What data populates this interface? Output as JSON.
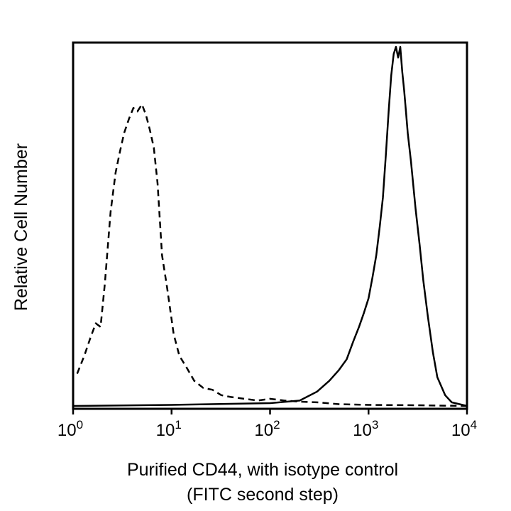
{
  "chart_data": {
    "type": "line",
    "title": "",
    "xlabel": [
      "Purified CD44, with isotype control",
      "(FITC second step)"
    ],
    "ylabel": "Relative Cell Number",
    "x_scale": "log10",
    "xlim": [
      1,
      10000
    ],
    "ylim": [
      0,
      100
    ],
    "grid": false,
    "x_ticks": [
      {
        "base": "10",
        "exp": "0",
        "value": 1
      },
      {
        "base": "10",
        "exp": "1",
        "value": 10
      },
      {
        "base": "10",
        "exp": "2",
        "value": 100
      },
      {
        "base": "10",
        "exp": "3",
        "value": 1000
      },
      {
        "base": "10",
        "exp": "4",
        "value": 10000
      }
    ],
    "series": [
      {
        "name": "isotype control",
        "style": "dashed",
        "color": "#000000",
        "x": [
          1.1,
          1.3,
          1.5,
          1.7,
          1.9,
          2.1,
          2.4,
          2.7,
          3.0,
          3.3,
          3.7,
          4.1,
          4.5,
          5.0,
          5.5,
          6.0,
          6.6,
          7.2,
          8.0,
          9.0,
          10.5,
          12,
          14,
          17,
          21,
          26,
          32,
          40,
          55,
          75,
          100,
          140,
          200,
          300,
          500,
          1000,
          3000,
          10000
        ],
        "y": [
          9,
          14,
          19,
          23,
          22,
          34,
          54,
          65,
          71,
          76,
          80,
          83,
          82,
          84,
          81,
          77,
          72,
          62,
          42,
          33,
          20,
          14,
          11,
          7,
          5,
          4.5,
          3,
          2.5,
          2,
          1.5,
          2,
          1.5,
          1.2,
          1,
          0.5,
          0.3,
          0.2,
          0
        ]
      },
      {
        "name": "Purified CD44",
        "style": "solid",
        "color": "#000000",
        "x": [
          1,
          10,
          100,
          200,
          300,
          400,
          500,
          600,
          700,
          800,
          900,
          1000,
          1100,
          1200,
          1300,
          1400,
          1500,
          1600,
          1700,
          1800,
          1900,
          2000,
          2100,
          2200,
          2300,
          2400,
          2500,
          2700,
          3000,
          3300,
          3600,
          4000,
          4500,
          5000,
          6000,
          7000,
          10000
        ],
        "y": [
          0,
          0.3,
          0.8,
          1.5,
          4,
          7,
          10,
          13,
          18,
          22,
          26,
          30,
          36,
          42,
          50,
          58,
          70,
          82,
          92,
          98,
          100,
          97,
          100,
          93,
          88,
          82,
          76,
          68,
          55,
          45,
          35,
          25,
          15,
          8,
          3,
          1,
          0
        ]
      }
    ]
  }
}
